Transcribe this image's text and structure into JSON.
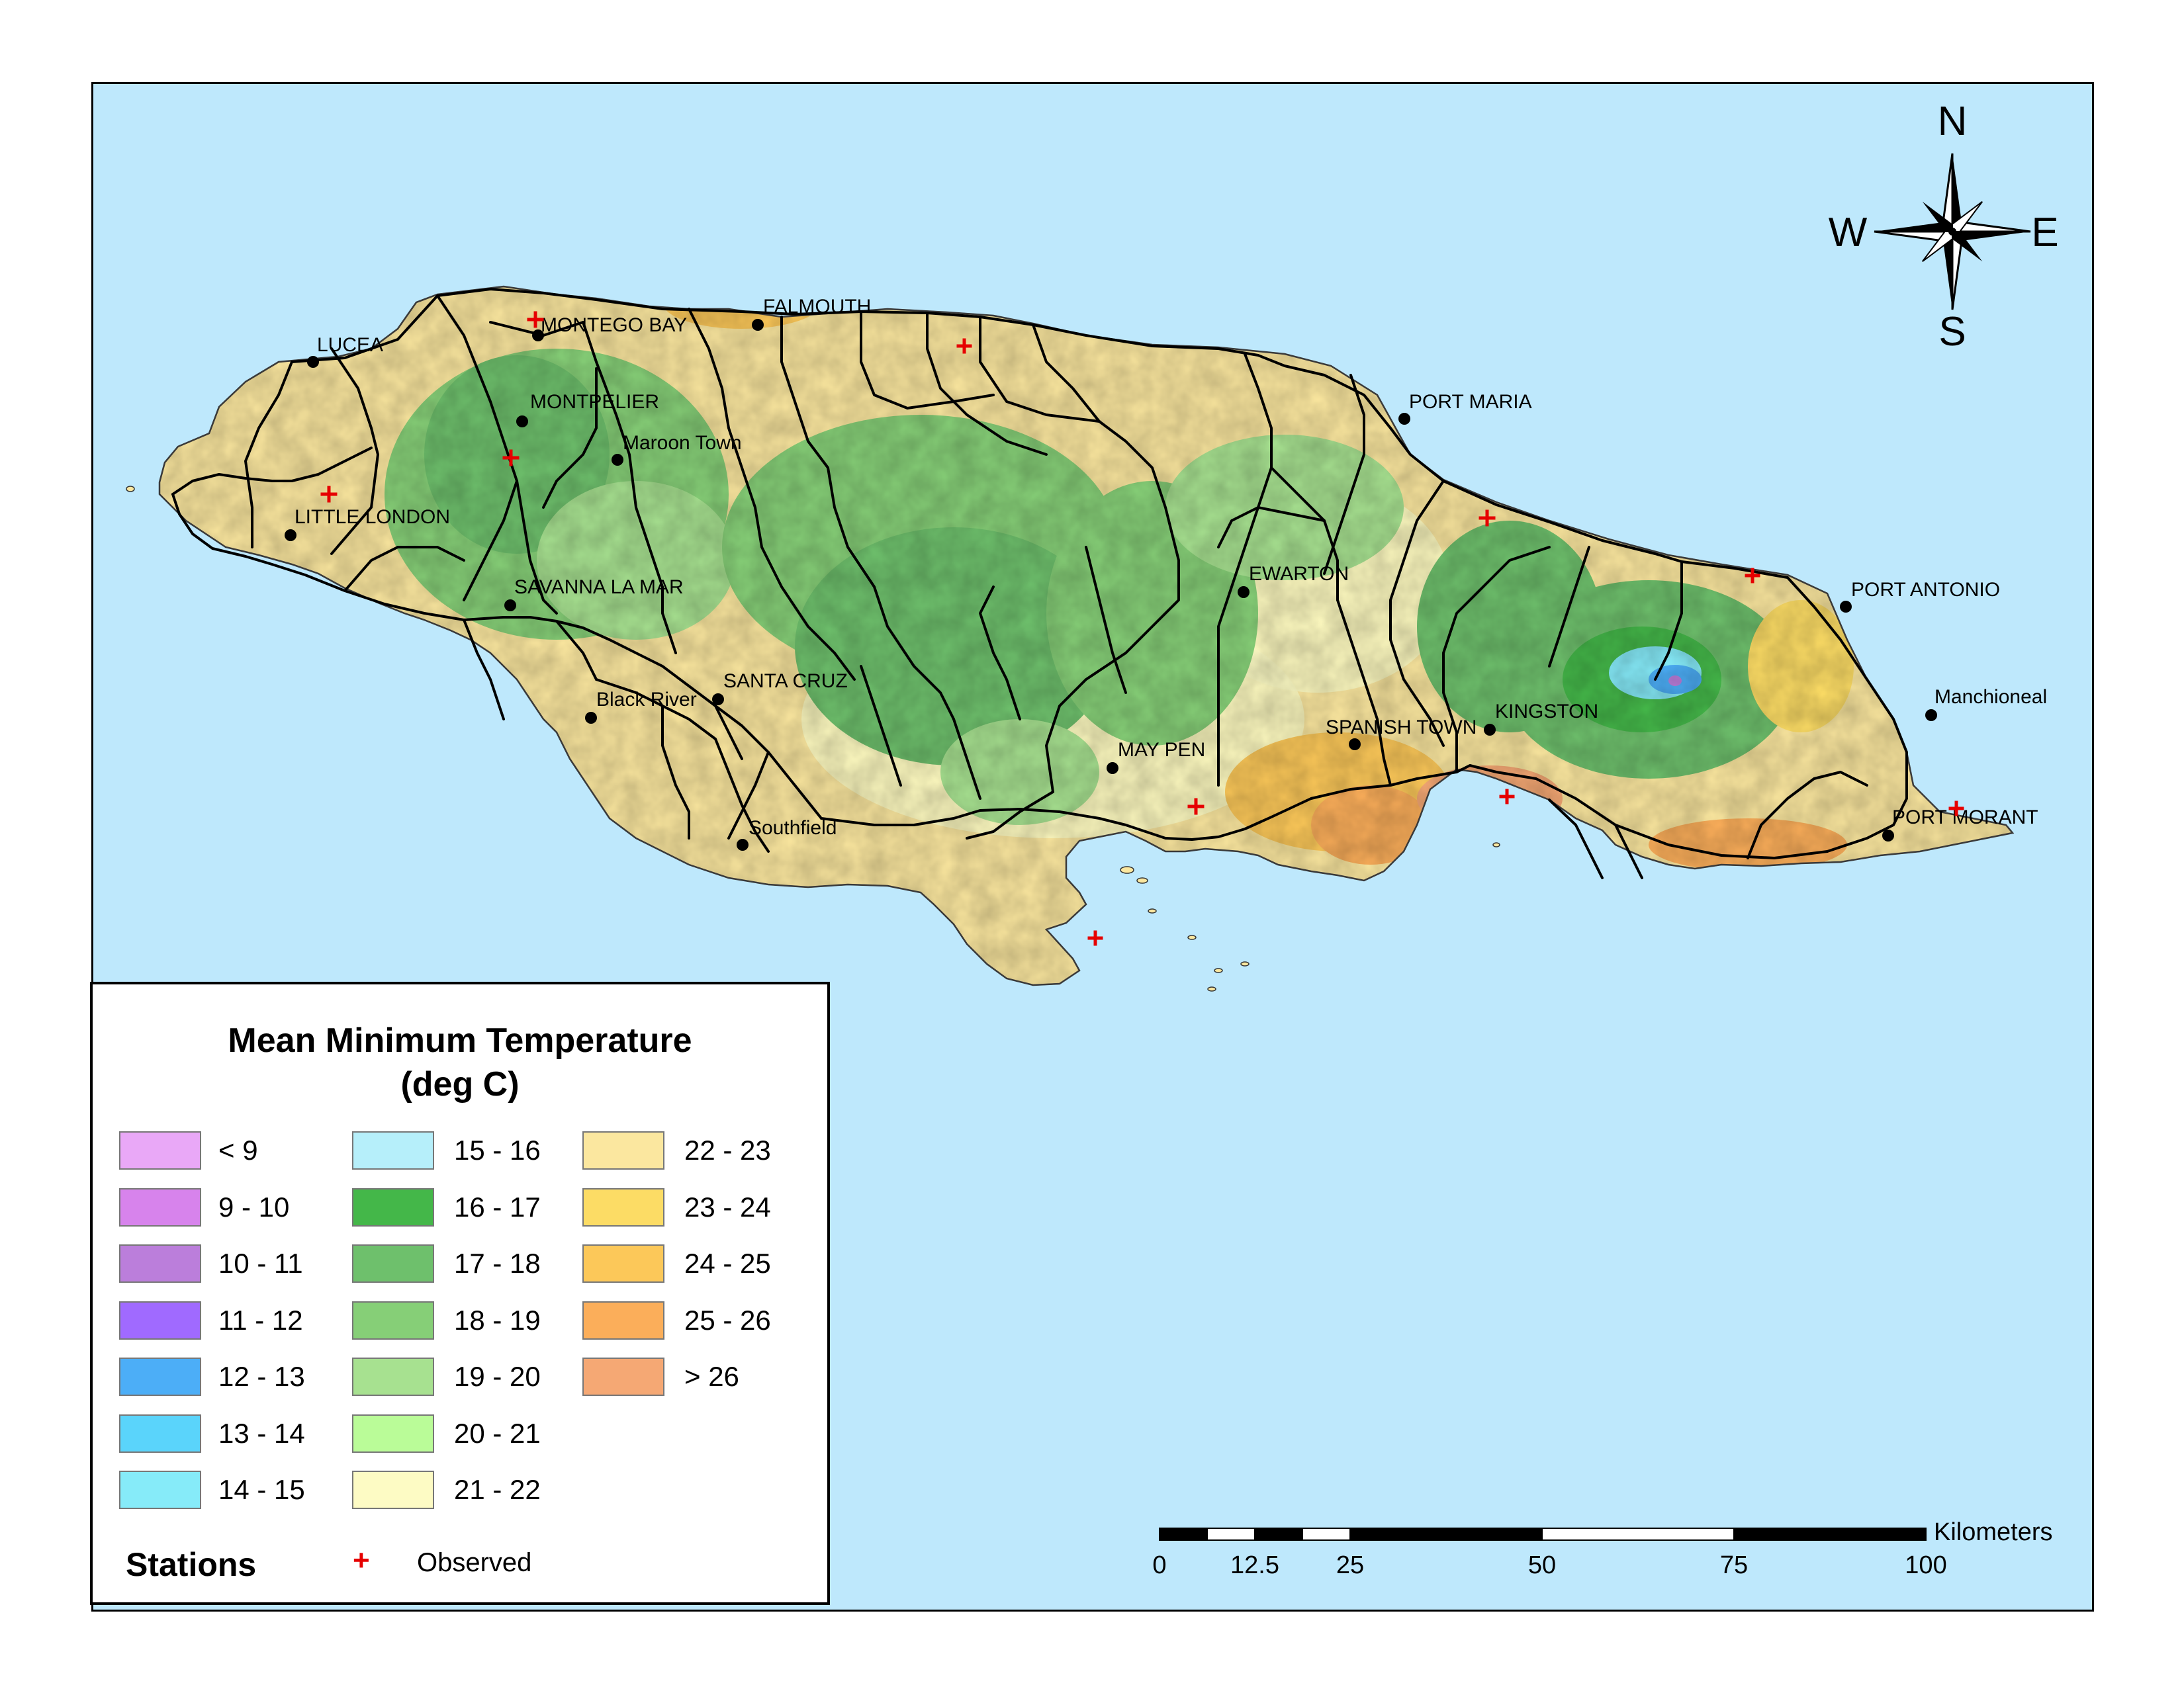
{
  "legend": {
    "title_line1": "Mean Minimum Temperature",
    "title_line2": "(deg C)",
    "classes": [
      {
        "label": "< 9",
        "color": "#e9a8f7"
      },
      {
        "label": "9 - 10",
        "color": "#d783ec"
      },
      {
        "label": "10 - 11",
        "color": "#bb7edb"
      },
      {
        "label": "11 - 12",
        "color": "#a06aff"
      },
      {
        "label": "12 - 13",
        "color": "#4caef7"
      },
      {
        "label": "13 - 14",
        "color": "#5ad4fb"
      },
      {
        "label": "14 - 15",
        "color": "#86ebf9"
      },
      {
        "label": "15 - 16",
        "color": "#b6effa"
      },
      {
        "label": "16 - 17",
        "color": "#44b749"
      },
      {
        "label": "17 - 18",
        "color": "#6ec06c"
      },
      {
        "label": "18 - 19",
        "color": "#86cf77"
      },
      {
        "label": "19 - 20",
        "color": "#a7e190"
      },
      {
        "label": "20 - 21",
        "color": "#bafc98"
      },
      {
        "label": "21 - 22",
        "color": "#fdfbc4"
      },
      {
        "label": "22 - 23",
        "color": "#fbe79f"
      },
      {
        "label": "23 - 24",
        "color": "#fcdc65"
      },
      {
        "label": "24 - 25",
        "color": "#fcc859"
      },
      {
        "label": "25 - 26",
        "color": "#fbae5a"
      },
      {
        "label": "> 26",
        "color": "#f5a874"
      }
    ],
    "stations_title": "Stations",
    "observed_label": "Observed",
    "observed_symbol": "+"
  },
  "compass": {
    "n": "N",
    "s": "S",
    "e": "E",
    "w": "W"
  },
  "scale_bar": {
    "unit_label": "Kilometers",
    "tick_labels": [
      "0",
      "12.5",
      "25",
      "50",
      "75",
      "100"
    ]
  },
  "places": [
    {
      "name": "MONTEGO BAY"
    },
    {
      "name": "FALMOUTH"
    },
    {
      "name": "LUCEA"
    },
    {
      "name": "MONTPELIER"
    },
    {
      "name": "Maroon Town"
    },
    {
      "name": "PORT MARIA"
    },
    {
      "name": "LITTLE LONDON"
    },
    {
      "name": "SAVANNA LA MAR"
    },
    {
      "name": "EWARTON"
    },
    {
      "name": "PORT ANTONIO"
    },
    {
      "name": "Black River"
    },
    {
      "name": "SANTA CRUZ"
    },
    {
      "name": "KINGSTON"
    },
    {
      "name": "Manchioneal"
    },
    {
      "name": "SPANISH TOWN"
    },
    {
      "name": "MAY PEN"
    },
    {
      "name": "Southfield"
    },
    {
      "name": "PORT MORANT"
    }
  ],
  "colors": {
    "sea": "#bee8fc",
    "station_marker": "#e60000",
    "town_dot": "#000000",
    "road": "#000000"
  }
}
